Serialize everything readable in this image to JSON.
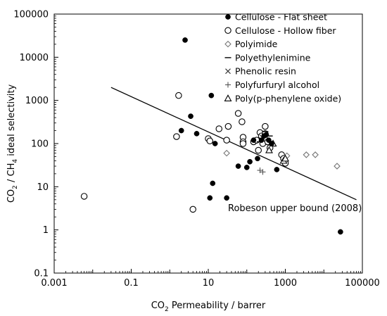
{
  "chart_data": {
    "type": "scatter",
    "x_scale": "log",
    "y_scale": "log",
    "xlim": [
      0.001,
      100000
    ],
    "ylim": [
      0.1,
      100000
    ],
    "x_ticks": [
      0.001,
      0.1,
      10,
      1000,
      100000
    ],
    "x_tick_labels": [
      "0.001",
      "0.1",
      "10",
      "1000",
      "100000"
    ],
    "y_ticks": [
      0.1,
      1,
      10,
      100,
      1000,
      10000,
      100000
    ],
    "y_tick_labels": [
      "0.1",
      "1",
      "10",
      "100",
      "1000",
      "10000",
      "100000"
    ],
    "xlabel": {
      "pre": "CO",
      "sub": "2",
      "post": " Permeability / barrer"
    },
    "ylabel": {
      "p1": "CO",
      "s1": "2",
      "p2": " / CH",
      "s2": "4",
      "p3": " ideal selectivity"
    },
    "grid": false,
    "legend_position": "top-right",
    "series": [
      {
        "name": "Cellulose - Flat sheet",
        "marker": "filled-circle",
        "points": [
          [
            2.5,
            25000
          ],
          [
            12,
            1300
          ],
          [
            3.5,
            430
          ],
          [
            2,
            200
          ],
          [
            5,
            170
          ],
          [
            15,
            100
          ],
          [
            11,
            5.5
          ],
          [
            13,
            12
          ],
          [
            30,
            5.5
          ],
          [
            60,
            30
          ],
          [
            100,
            28
          ],
          [
            120,
            38
          ],
          [
            150,
            120
          ],
          [
            190,
            45
          ],
          [
            240,
            120
          ],
          [
            280,
            150
          ],
          [
            320,
            160
          ],
          [
            370,
            120
          ],
          [
            440,
            100
          ],
          [
            600,
            25
          ],
          [
            27000,
            0.9
          ]
        ]
      },
      {
        "name": "Cellulose - Hollow fiber",
        "marker": "open-circle",
        "points": [
          [
            0.006,
            6
          ],
          [
            1.7,
            1300
          ],
          [
            1.5,
            145
          ],
          [
            4,
            3
          ],
          [
            10,
            130
          ],
          [
            11,
            115
          ],
          [
            19,
            220
          ],
          [
            30,
            120
          ],
          [
            33,
            250
          ],
          [
            60,
            500
          ],
          [
            75,
            320
          ],
          [
            80,
            140
          ],
          [
            80,
            110
          ],
          [
            80,
            100
          ],
          [
            150,
            110
          ],
          [
            180,
            120
          ],
          [
            200,
            70
          ],
          [
            220,
            180
          ],
          [
            240,
            150
          ],
          [
            260,
            100
          ],
          [
            300,
            250
          ],
          [
            300,
            170
          ],
          [
            350,
            110
          ],
          [
            400,
            80
          ],
          [
            800,
            55
          ],
          [
            900,
            45
          ],
          [
            1000,
            35
          ]
        ]
      },
      {
        "name": "Polyimide",
        "marker": "open-diamond",
        "points": [
          [
            30,
            60
          ],
          [
            1100,
            52
          ],
          [
            3500,
            55
          ],
          [
            6000,
            55
          ],
          [
            22000,
            30
          ]
        ]
      },
      {
        "name": "Polyethylenimine",
        "marker": "dash",
        "points": [
          [
            220,
            110
          ],
          [
            300,
            190
          ],
          [
            390,
            150
          ]
        ]
      },
      {
        "name": "Phenolic resin",
        "marker": "x",
        "points": [
          [
            250,
            140
          ],
          [
            300,
            150
          ]
        ]
      },
      {
        "name": "Polyfurfuryl alcohol",
        "marker": "plus",
        "points": [
          [
            220,
            24
          ],
          [
            260,
            22
          ]
        ]
      },
      {
        "name": "Poly(p-phenylene oxide)",
        "marker": "open-triangle",
        "points": [
          [
            380,
            70
          ],
          [
            480,
            100
          ],
          [
            900,
            40
          ],
          [
            1000,
            45
          ]
        ]
      }
    ],
    "reference_line": {
      "label": "Robeson upper bound (2008)",
      "points": [
        [
          0.03,
          2000
        ],
        [
          70000,
          5
        ]
      ]
    }
  }
}
